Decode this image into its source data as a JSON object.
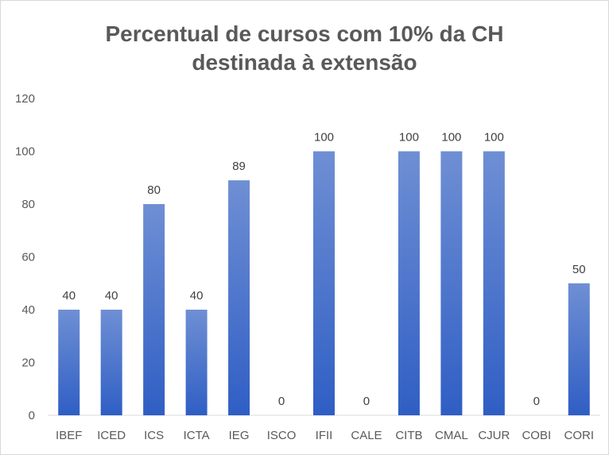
{
  "chart_data": {
    "type": "bar",
    "title_line1": "Percentual de cursos com 10% da CH",
    "title_line2": "destinada à extensão",
    "categories": [
      "IBEF",
      "ICED",
      "ICS",
      "ICTA",
      "IEG",
      "ISCO",
      "IFII",
      "CALE",
      "CITB",
      "CMAL",
      "CJUR",
      "COBI",
      "CORI"
    ],
    "values": [
      40,
      40,
      80,
      40,
      89,
      0,
      100,
      0,
      100,
      100,
      100,
      0,
      50
    ],
    "ylim": [
      0,
      120
    ],
    "yticks": [
      0,
      20,
      40,
      60,
      80,
      100,
      120
    ],
    "grid": false,
    "legend": "none",
    "bar_color_top": "#6f8fd4",
    "bar_color_bottom": "#2f5ec4"
  }
}
